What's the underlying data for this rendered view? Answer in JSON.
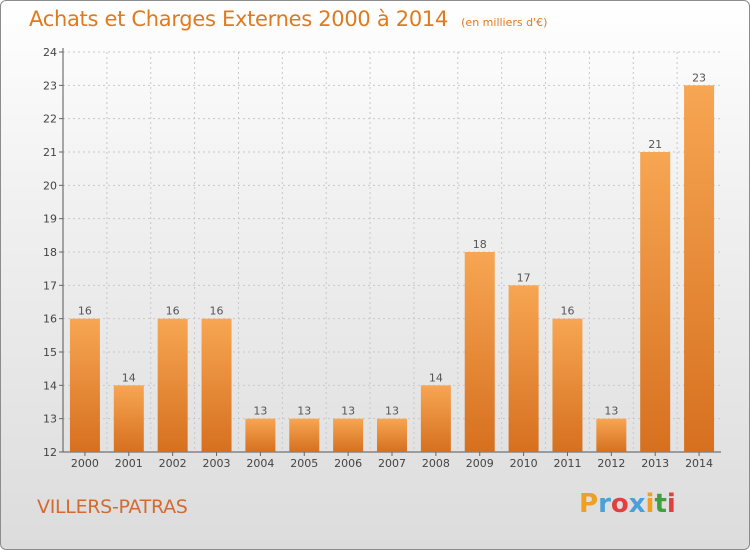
{
  "chart_data": {
    "type": "bar",
    "title": "Achats et Charges Externes 2000 à 2014",
    "subtitle": "(en milliers d'€)",
    "categories": [
      "2000",
      "2001",
      "2002",
      "2003",
      "2004",
      "2005",
      "2006",
      "2007",
      "2008",
      "2009",
      "2010",
      "2011",
      "2012",
      "2013",
      "2014"
    ],
    "values": [
      16,
      14,
      16,
      16,
      13,
      13,
      13,
      13,
      14,
      18,
      17,
      16,
      13,
      21,
      23
    ],
    "ylim": [
      12,
      24
    ],
    "yticks": [
      12,
      13,
      14,
      15,
      16,
      17,
      18,
      19,
      20,
      21,
      22,
      23,
      24
    ],
    "grid": true,
    "xlabel": "",
    "ylabel": ""
  },
  "location": "VILLERS-PATRAS",
  "brand": {
    "letters": [
      "P",
      "r",
      "o",
      "x",
      "i",
      "t",
      "i"
    ],
    "colors": [
      "#f0a020",
      "#4aa0d8",
      "#e04040",
      "#4aa0d8",
      "#f0a020",
      "#40a040",
      "#e04040"
    ]
  },
  "colors": {
    "bar_light": "#f7a653",
    "bar_dark": "#d6701f",
    "accent": "#e07a1f"
  }
}
